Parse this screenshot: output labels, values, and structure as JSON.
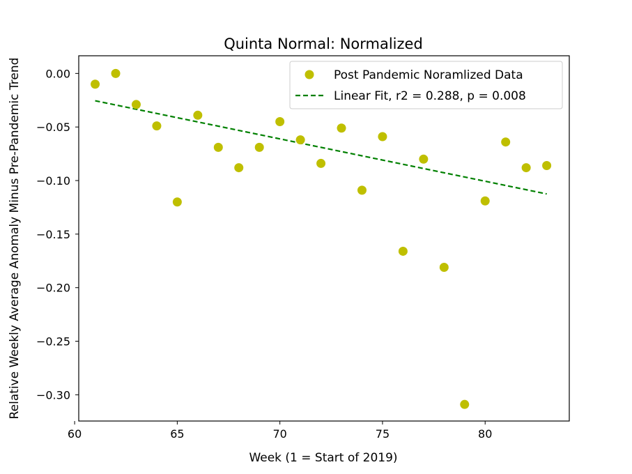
{
  "chart_data": {
    "type": "scatter",
    "title": "Quinta Normal: Normalized",
    "xlabel": "Week (1 = Start of 2019)",
    "ylabel": "Relative Weekly Average Anomaly Minus Pre-Pandemic Trend",
    "xlim": [
      60.2,
      84.1
    ],
    "ylim": [
      -0.3245,
      0.0165
    ],
    "xticks": [
      60,
      65,
      70,
      75,
      80
    ],
    "xtick_labels": [
      "60",
      "65",
      "70",
      "75",
      "80"
    ],
    "yticks": [
      0.0,
      -0.05,
      -0.1,
      -0.15,
      -0.2,
      -0.25,
      -0.3
    ],
    "ytick_labels": [
      "0.00",
      "−0.05",
      "−0.10",
      "−0.15",
      "−0.20",
      "−0.25",
      "−0.30"
    ],
    "grid": false,
    "legend_position": "top-right",
    "series": [
      {
        "name": "Post Pandemic Noramlized Data",
        "kind": "scatter",
        "color": "#bfbf00",
        "x": [
          61,
          62,
          63,
          64,
          65,
          66,
          67,
          68,
          69,
          70,
          71,
          72,
          73,
          74,
          75,
          76,
          77,
          78,
          79,
          80,
          81,
          82,
          83
        ],
        "y": [
          -0.01,
          0.0,
          -0.029,
          -0.049,
          -0.12,
          -0.039,
          -0.069,
          -0.088,
          -0.069,
          -0.045,
          -0.062,
          -0.084,
          -0.051,
          -0.109,
          -0.059,
          -0.166,
          -0.08,
          -0.181,
          -0.309,
          -0.119,
          -0.064,
          -0.088,
          -0.086
        ]
      },
      {
        "name": "Linear Fit, r2 = 0.288, p = 0.008",
        "kind": "line",
        "style": "dashed",
        "color": "#008000",
        "x": [
          61,
          83
        ],
        "y": [
          -0.0255,
          -0.1125
        ]
      }
    ]
  }
}
